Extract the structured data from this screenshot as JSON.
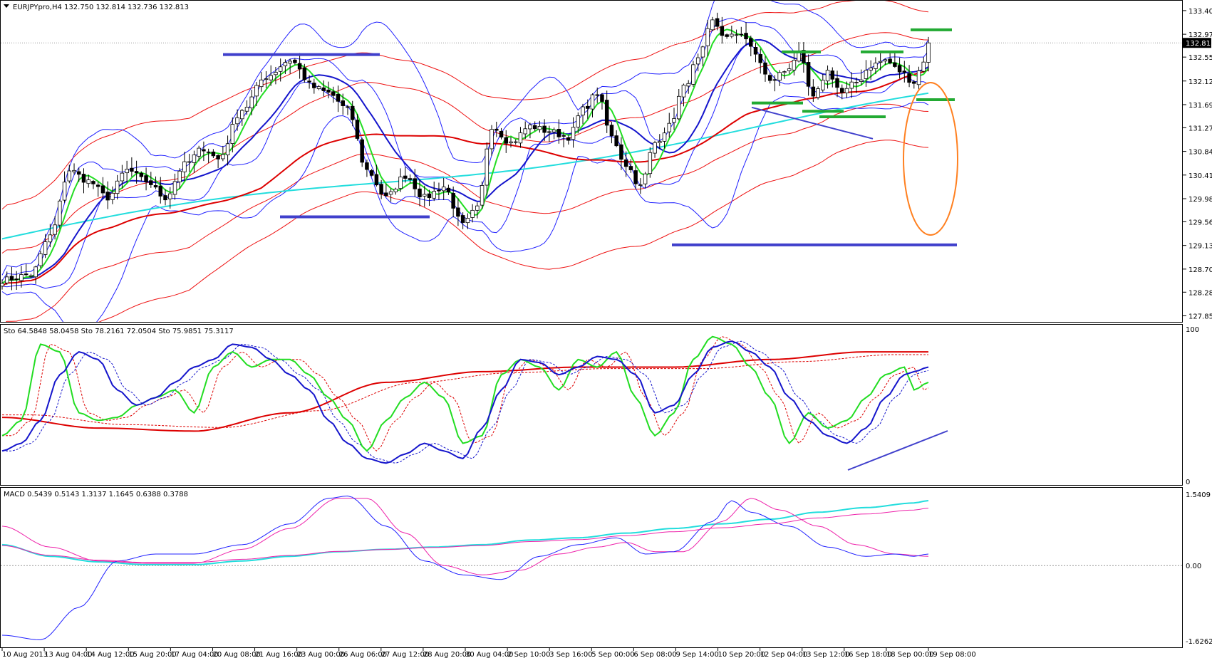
{
  "chart_data": [
    {
      "type": "candlestick",
      "title": "EURJPYpro,H4",
      "ohlc_text": "132.750 132.814 132.736 132.813",
      "current_price": "132.813",
      "ylim": [
        127.74,
        133.58
      ],
      "y_ticks": [
        "133.400",
        "132.970",
        "132.555",
        "132.120",
        "131.690",
        "131.270",
        "130.840",
        "130.410",
        "129.980",
        "129.560",
        "129.130",
        "128.700",
        "128.280",
        "127.850"
      ],
      "key_points": [
        [
          0,
          128.5
        ],
        [
          6,
          128.6
        ],
        [
          10,
          129.3
        ],
        [
          14,
          130.5
        ],
        [
          18,
          130.3
        ],
        [
          22,
          130.0
        ],
        [
          26,
          130.5
        ],
        [
          30,
          130.3
        ],
        [
          34,
          130.0
        ],
        [
          38,
          130.6
        ],
        [
          42,
          130.9
        ],
        [
          45,
          130.7
        ],
        [
          50,
          131.6
        ],
        [
          55,
          132.2
        ],
        [
          60,
          132.5
        ],
        [
          65,
          132.0
        ],
        [
          68,
          131.9
        ],
        [
          72,
          131.6
        ],
        [
          76,
          130.5
        ],
        [
          80,
          130.0
        ],
        [
          84,
          130.4
        ],
        [
          88,
          130.0
        ],
        [
          92,
          130.2
        ],
        [
          96,
          129.5
        ],
        [
          99,
          129.8
        ],
        [
          102,
          131.3
        ],
        [
          106,
          131.0
        ],
        [
          110,
          131.3
        ],
        [
          114,
          131.2
        ],
        [
          118,
          131.1
        ],
        [
          121,
          131.6
        ],
        [
          124,
          131.9
        ],
        [
          127,
          131.1
        ],
        [
          130,
          130.6
        ],
        [
          133,
          130.2
        ],
        [
          136,
          131.0
        ],
        [
          139,
          131.3
        ],
        [
          142,
          132.0
        ],
        [
          145,
          132.5
        ],
        [
          148,
          133.2
        ],
        [
          151,
          132.9
        ],
        [
          154,
          133.0
        ],
        [
          157,
          132.6
        ],
        [
          160,
          132.1
        ],
        [
          163,
          132.3
        ],
        [
          166,
          132.6
        ],
        [
          169,
          131.8
        ],
        [
          172,
          132.3
        ],
        [
          175,
          131.9
        ],
        [
          178,
          132.1
        ],
        [
          181,
          132.4
        ],
        [
          184,
          132.5
        ],
        [
          187,
          132.3
        ],
        [
          190,
          132.1
        ],
        [
          192,
          132.5
        ],
        [
          193,
          132.8
        ]
      ],
      "overlay_labels": [
        "Bollinger bands",
        "moving averages",
        "support/resistance marks"
      ]
    },
    {
      "type": "line",
      "title": "Sto 64.5848 58.0458   Sto 78.2161 72.0504   Sto 75.9851 75.3117",
      "ylim": [
        0,
        100
      ],
      "y_ticks": [
        "100",
        "0"
      ],
      "key_points_green": [
        [
          0,
          30
        ],
        [
          4,
          40
        ],
        [
          8,
          90
        ],
        [
          12,
          85
        ],
        [
          16,
          45
        ],
        [
          20,
          40
        ],
        [
          24,
          42
        ],
        [
          28,
          50
        ],
        [
          32,
          55
        ],
        [
          36,
          60
        ],
        [
          40,
          45
        ],
        [
          44,
          75
        ],
        [
          48,
          85
        ],
        [
          52,
          75
        ],
        [
          56,
          80
        ],
        [
          60,
          80
        ],
        [
          64,
          70
        ],
        [
          68,
          55
        ],
        [
          72,
          40
        ],
        [
          76,
          20
        ],
        [
          80,
          40
        ],
        [
          84,
          55
        ],
        [
          88,
          65
        ],
        [
          92,
          55
        ],
        [
          96,
          25
        ],
        [
          100,
          30
        ],
        [
          104,
          70
        ],
        [
          108,
          80
        ],
        [
          112,
          75
        ],
        [
          116,
          60
        ],
        [
          120,
          80
        ],
        [
          124,
          75
        ],
        [
          128,
          85
        ],
        [
          132,
          55
        ],
        [
          136,
          30
        ],
        [
          140,
          45
        ],
        [
          144,
          80
        ],
        [
          148,
          95
        ],
        [
          152,
          90
        ],
        [
          156,
          75
        ],
        [
          160,
          55
        ],
        [
          164,
          25
        ],
        [
          168,
          45
        ],
        [
          172,
          35
        ],
        [
          176,
          40
        ],
        [
          180,
          55
        ],
        [
          184,
          70
        ],
        [
          188,
          75
        ],
        [
          190,
          60
        ],
        [
          193,
          65
        ]
      ],
      "key_points_blue": [
        [
          0,
          20
        ],
        [
          4,
          25
        ],
        [
          8,
          40
        ],
        [
          12,
          70
        ],
        [
          16,
          85
        ],
        [
          20,
          80
        ],
        [
          24,
          60
        ],
        [
          28,
          50
        ],
        [
          32,
          55
        ],
        [
          36,
          65
        ],
        [
          40,
          75
        ],
        [
          44,
          80
        ],
        [
          48,
          90
        ],
        [
          52,
          88
        ],
        [
          56,
          80
        ],
        [
          60,
          70
        ],
        [
          64,
          60
        ],
        [
          68,
          40
        ],
        [
          72,
          25
        ],
        [
          76,
          15
        ],
        [
          80,
          12
        ],
        [
          84,
          18
        ],
        [
          88,
          25
        ],
        [
          92,
          20
        ],
        [
          96,
          15
        ],
        [
          100,
          35
        ],
        [
          104,
          60
        ],
        [
          108,
          80
        ],
        [
          112,
          78
        ],
        [
          116,
          70
        ],
        [
          120,
          75
        ],
        [
          124,
          82
        ],
        [
          128,
          80
        ],
        [
          132,
          70
        ],
        [
          136,
          45
        ],
        [
          140,
          50
        ],
        [
          144,
          70
        ],
        [
          148,
          88
        ],
        [
          152,
          92
        ],
        [
          156,
          85
        ],
        [
          160,
          75
        ],
        [
          164,
          55
        ],
        [
          168,
          40
        ],
        [
          172,
          30
        ],
        [
          176,
          25
        ],
        [
          180,
          35
        ],
        [
          184,
          55
        ],
        [
          188,
          70
        ],
        [
          190,
          72
        ],
        [
          193,
          75
        ]
      ],
      "key_points_red": [
        [
          0,
          42
        ],
        [
          20,
          35
        ],
        [
          40,
          33
        ],
        [
          60,
          45
        ],
        [
          80,
          65
        ],
        [
          100,
          72
        ],
        [
          120,
          75
        ],
        [
          140,
          75
        ],
        [
          160,
          80
        ],
        [
          180,
          85
        ],
        [
          193,
          85
        ]
      ]
    },
    {
      "type": "line",
      "title": "MACD 0.5439 0.5143 1.3137 1.1645 0.6388 0.3788",
      "ylim": [
        -1.7,
        1.6
      ],
      "y_ticks": [
        "1.5409",
        "0.00",
        "-1.6262"
      ],
      "key_points_cyan": [
        [
          0,
          0.45
        ],
        [
          10,
          0.2
        ],
        [
          20,
          0.08
        ],
        [
          30,
          0.02
        ],
        [
          40,
          0.02
        ],
        [
          50,
          0.1
        ],
        [
          60,
          0.2
        ],
        [
          70,
          0.3
        ],
        [
          80,
          0.35
        ],
        [
          90,
          0.4
        ],
        [
          100,
          0.45
        ],
        [
          110,
          0.55
        ],
        [
          120,
          0.6
        ],
        [
          130,
          0.7
        ],
        [
          140,
          0.8
        ],
        [
          150,
          0.9
        ],
        [
          160,
          1.0
        ],
        [
          170,
          1.15
        ],
        [
          180,
          1.25
        ],
        [
          190,
          1.35
        ],
        [
          193,
          1.4
        ]
      ],
      "key_points_blue": [
        [
          0,
          -1.5
        ],
        [
          8,
          -1.6
        ],
        [
          16,
          -0.9
        ],
        [
          24,
          0.1
        ],
        [
          32,
          0.25
        ],
        [
          40,
          0.25
        ],
        [
          50,
          0.45
        ],
        [
          60,
          0.9
        ],
        [
          68,
          1.45
        ],
        [
          72,
          1.5
        ],
        [
          80,
          0.85
        ],
        [
          88,
          0.1
        ],
        [
          96,
          -0.2
        ],
        [
          104,
          -0.3
        ],
        [
          112,
          0.2
        ],
        [
          120,
          0.45
        ],
        [
          128,
          0.6
        ],
        [
          134,
          0.25
        ],
        [
          140,
          0.3
        ],
        [
          148,
          0.95
        ],
        [
          152,
          1.4
        ],
        [
          156,
          1.15
        ],
        [
          164,
          0.85
        ],
        [
          172,
          0.4
        ],
        [
          180,
          0.2
        ],
        [
          186,
          0.25
        ],
        [
          190,
          0.2
        ],
        [
          193,
          0.25
        ]
      ],
      "key_points_magenta": [
        [
          0,
          0.85
        ],
        [
          10,
          0.4
        ],
        [
          20,
          0.1
        ],
        [
          30,
          0.05
        ],
        [
          40,
          0.05
        ],
        [
          50,
          0.35
        ],
        [
          60,
          0.8
        ],
        [
          70,
          1.45
        ],
        [
          76,
          1.45
        ],
        [
          84,
          0.7
        ],
        [
          92,
          0.0
        ],
        [
          100,
          -0.2
        ],
        [
          108,
          -0.1
        ],
        [
          116,
          0.25
        ],
        [
          124,
          0.4
        ],
        [
          130,
          0.5
        ],
        [
          136,
          0.3
        ],
        [
          142,
          0.3
        ],
        [
          150,
          0.95
        ],
        [
          156,
          1.45
        ],
        [
          162,
          1.2
        ],
        [
          170,
          0.85
        ],
        [
          178,
          0.45
        ],
        [
          186,
          0.25
        ],
        [
          193,
          0.2
        ]
      ]
    }
  ],
  "x_labels": [
    "10 Aug 2013",
    "13 Aug 04:00",
    "14 Aug 12:00",
    "15 Aug 20:00",
    "17 Aug 04:00",
    "20 Aug 08:00",
    "21 Aug 16:00",
    "23 Aug 00:00",
    "26 Aug 06:00",
    "27 Aug 12:00",
    "28 Aug 20:00",
    "30 Aug 04:00",
    "2 Sep 10:00",
    "3 Sep 16:00",
    "5 Sep 00:00",
    "6 Sep 08:00",
    "9 Sep 14:00",
    "10 Sep 20:00",
    "12 Sep 04:00",
    "13 Sep 12:00",
    "16 Sep 18:00",
    "18 Sep 00:00",
    "19 Sep 08:00"
  ],
  "colors": {
    "bollinger": "#2020ff",
    "envelope": "#ee1111",
    "ma_fast": "#22dd22",
    "ma_mid": "#1515cc",
    "ma_slow": "#dd0000",
    "ma_long": "#22dddd",
    "resistance_marks": "#4040cc",
    "support_marks": "#22aa33",
    "ellipse": "#ff8020",
    "macd_magenta": "#ee22aa",
    "macd_cyan": "#22dddd"
  }
}
